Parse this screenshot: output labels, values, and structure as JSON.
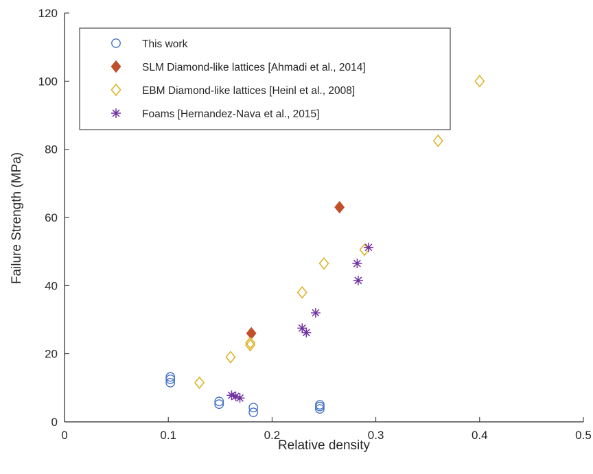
{
  "chart_data": {
    "type": "scatter",
    "xlabel": "Relative density",
    "ylabel": "Failure Strength (MPa)",
    "xlim": [
      0,
      0.5
    ],
    "ylim": [
      0,
      120
    ],
    "xticks": [
      0,
      0.1,
      0.2,
      0.3,
      0.4,
      0.5
    ],
    "xtick_labels": [
      "0",
      "0.1",
      "0.2",
      "0.3",
      "0.4",
      "0.5"
    ],
    "yticks": [
      0,
      20,
      40,
      60,
      80,
      100,
      120
    ],
    "ytick_labels": [
      "0",
      "20",
      "40",
      "60",
      "80",
      "100",
      "120"
    ],
    "grid": false,
    "legend_position": "top-left",
    "series": [
      {
        "name": "This work",
        "marker": "circle-open",
        "color": "#4472c4",
        "points": [
          [
            0.102,
            11.5
          ],
          [
            0.102,
            12.5
          ],
          [
            0.102,
            13.2
          ],
          [
            0.149,
            5.2
          ],
          [
            0.149,
            6.0
          ],
          [
            0.182,
            2.8
          ],
          [
            0.182,
            4.2
          ],
          [
            0.246,
            3.8
          ],
          [
            0.246,
            4.5
          ],
          [
            0.246,
            5.0
          ]
        ]
      },
      {
        "name": "SLM Diamond-like lattices [Ahmadi et al., 2014]",
        "marker": "diamond-filled",
        "color": "#c0502a",
        "points": [
          [
            0.18,
            26.0
          ],
          [
            0.265,
            63.0
          ]
        ]
      },
      {
        "name": "EBM Diamond-like lattices [Heinl et al., 2008]",
        "marker": "diamond-open",
        "color": "#dbb01f",
        "points": [
          [
            0.13,
            11.5
          ],
          [
            0.16,
            19.0
          ],
          [
            0.179,
            22.5
          ],
          [
            0.179,
            23.2
          ],
          [
            0.229,
            38.0
          ],
          [
            0.25,
            46.5
          ],
          [
            0.289,
            50.5
          ],
          [
            0.36,
            82.5
          ],
          [
            0.4,
            100.0
          ]
        ]
      },
      {
        "name": "Foams [Hernandez-Nava et al., 2015]",
        "marker": "asterisk",
        "color": "#7030a0",
        "points": [
          [
            0.161,
            7.8
          ],
          [
            0.165,
            7.5
          ],
          [
            0.169,
            7.0
          ],
          [
            0.229,
            27.5
          ],
          [
            0.233,
            26.2
          ],
          [
            0.242,
            32.0
          ],
          [
            0.282,
            46.5
          ],
          [
            0.283,
            41.5
          ],
          [
            0.293,
            51.2
          ]
        ]
      }
    ]
  }
}
